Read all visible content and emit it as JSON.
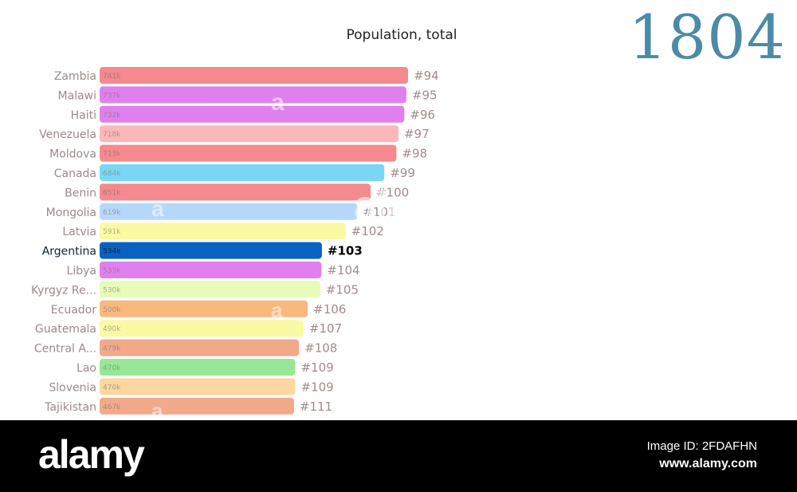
{
  "chart_data": {
    "type": "bar",
    "orientation": "horizontal",
    "title": "Population, total",
    "year": "1804",
    "highlight": "Argentina",
    "series": [
      {
        "categories": [
          "Zambia",
          "Malawi",
          "Haiti",
          "Venezuela",
          "Moldova",
          "Canada",
          "Benin",
          "Mongolia",
          "Latvia",
          "Argentina",
          "Libya",
          "Kyrgyz Re...",
          "Ecuador",
          "Guatemala",
          "Central A...",
          "Lao",
          "Slovenia",
          "Tajikistan"
        ],
        "values": [
          741000,
          737000,
          732000,
          718000,
          713000,
          684000,
          651000,
          619000,
          591000,
          534000,
          533000,
          530000,
          500000,
          490000,
          479000,
          470000,
          470000,
          467000
        ],
        "value_labels": [
          "741k",
          "737k",
          "732k",
          "718k",
          "713k",
          "684k",
          "651k",
          "619k",
          "591k",
          "534k",
          "533k",
          "530k",
          "500k",
          "490k",
          "479k",
          "470k",
          "470k",
          "467k"
        ],
        "ranks": [
          "#94",
          "#95",
          "#96",
          "#97",
          "#98",
          "#99",
          "#100",
          "#101",
          "#102",
          "#103",
          "#104",
          "#105",
          "#106",
          "#107",
          "#108",
          "#109",
          "#109",
          "#111"
        ],
        "colors": [
          "#f4898e",
          "#e080ee",
          "#e080ee",
          "#fbb8bb",
          "#f4898e",
          "#7ad6f5",
          "#f4898e",
          "#b5d8fa",
          "#fafaa4",
          "#0a62c0",
          "#e080ee",
          "#e6fcb8",
          "#f8b87e",
          "#fafaa4",
          "#f2a98a",
          "#96e896",
          "#fdd6a0",
          "#f2a98a"
        ]
      }
    ]
  },
  "watermark": {
    "logo": "alamy",
    "image_id": "Image ID: 2FDAFHN",
    "url": "www.alamy.com"
  }
}
